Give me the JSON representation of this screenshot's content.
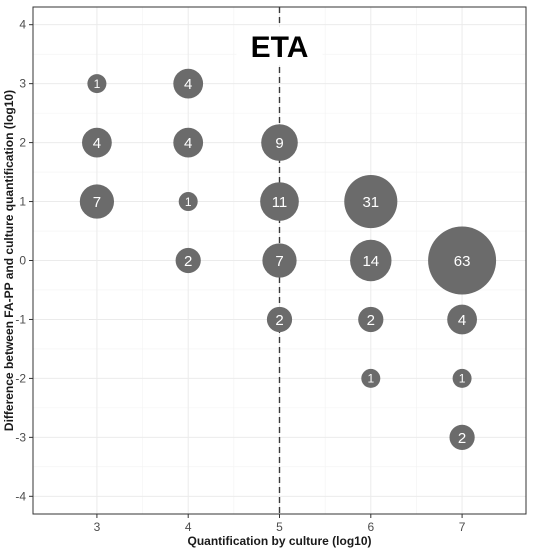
{
  "chart_data": {
    "type": "scatter",
    "title": "",
    "xlabel": "Quantification by culture (log10)",
    "ylabel": "Difference between FA-PP and culture quantification (log10)",
    "xlim": [
      2.3,
      7.7
    ],
    "ylim": [
      -4.3,
      4.3
    ],
    "xticks": [
      3,
      4,
      5,
      6,
      7
    ],
    "yticks": [
      -4,
      -3,
      -2,
      -1,
      0,
      1,
      2,
      3,
      4
    ],
    "grid": true,
    "vline": 5,
    "annotation": "ETA",
    "point_color": "#6b6b6b",
    "label_color": "#ffffff",
    "points": [
      {
        "x": 3,
        "y": 3,
        "n": 1
      },
      {
        "x": 3,
        "y": 2,
        "n": 4
      },
      {
        "x": 3,
        "y": 1,
        "n": 7
      },
      {
        "x": 4,
        "y": 3,
        "n": 4
      },
      {
        "x": 4,
        "y": 2,
        "n": 4
      },
      {
        "x": 4,
        "y": 1,
        "n": 1
      },
      {
        "x": 4,
        "y": 0,
        "n": 2
      },
      {
        "x": 5,
        "y": 2,
        "n": 9
      },
      {
        "x": 5,
        "y": 1,
        "n": 11
      },
      {
        "x": 5,
        "y": 0,
        "n": 7
      },
      {
        "x": 5,
        "y": -1,
        "n": 2
      },
      {
        "x": 6,
        "y": 1,
        "n": 31
      },
      {
        "x": 6,
        "y": 0,
        "n": 14
      },
      {
        "x": 6,
        "y": -1,
        "n": 2
      },
      {
        "x": 6,
        "y": -2,
        "n": 1
      },
      {
        "x": 7,
        "y": 0,
        "n": 63
      },
      {
        "x": 7,
        "y": -1,
        "n": 4
      },
      {
        "x": 7,
        "y": -2,
        "n": 1
      },
      {
        "x": 7,
        "y": -3,
        "n": 2
      }
    ]
  }
}
